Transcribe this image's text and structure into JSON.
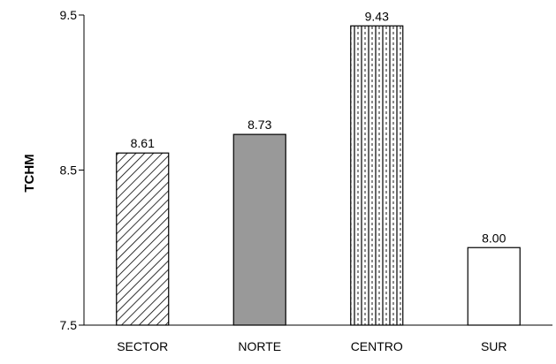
{
  "chart_data": {
    "type": "bar",
    "categories": [
      "SECTOR",
      "NORTE",
      "CENTRO",
      "SUR"
    ],
    "values": [
      8.61,
      8.73,
      9.43,
      8.0
    ],
    "value_labels": [
      "8.61",
      "8.73",
      "9.43",
      "8.00"
    ],
    "ylabel": "TCHM",
    "xlabel": "",
    "ylim": [
      7.5,
      9.5
    ],
    "yticks": [
      7.5,
      8.5,
      9.5
    ],
    "ytick_labels": [
      "7.5",
      "8.5",
      "9.5"
    ],
    "grid": false,
    "legend": "none",
    "bar_styles": [
      {
        "fill": "diagonal-hatch",
        "color": "#000000"
      },
      {
        "fill": "solid",
        "color": "#999999"
      },
      {
        "fill": "vertical-lines",
        "color": "#000000"
      },
      {
        "fill": "solid",
        "color": "#ffffff"
      }
    ]
  }
}
